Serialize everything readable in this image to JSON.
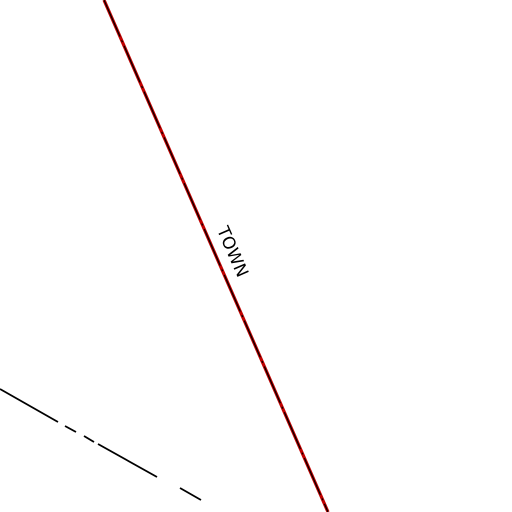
{
  "map": {
    "labels": {
      "boundary": "TOWN"
    },
    "colors": {
      "boundary_fill": "#c00000",
      "boundary_dash": "#000000",
      "secondary_line": "#000000",
      "background": "#ffffff"
    }
  }
}
